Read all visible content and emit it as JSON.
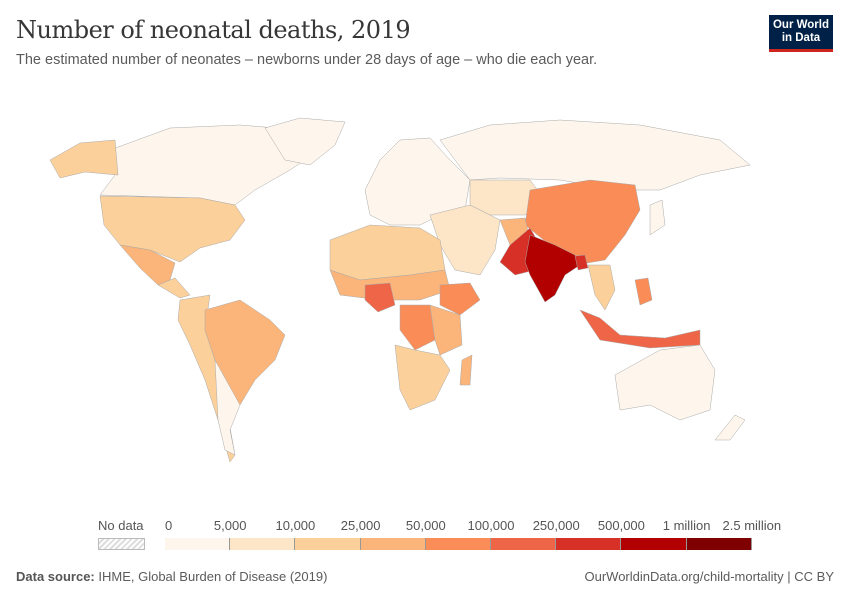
{
  "header": {
    "title": "Number of neonatal deaths, 2019",
    "subtitle": "The estimated number of neonates – newborns under 28 days of age – who die each year.",
    "logo": "Our World in Data"
  },
  "legend": {
    "no_data_label": "No data",
    "ticks": [
      "0",
      "5,000",
      "10,000",
      "25,000",
      "50,000",
      "100,000",
      "250,000",
      "500,000",
      "1 million",
      "2.5 million"
    ],
    "colors": [
      "#fef6ec",
      "#fde5c7",
      "#fcd09a",
      "#fbb479",
      "#fa8c57",
      "#ee6547",
      "#d73027",
      "#b20000",
      "#7f0000"
    ],
    "no_data_color": "#e0e0e0"
  },
  "footer": {
    "source_label": "Data source:",
    "source": "IHME, Global Burden of Disease (2019)",
    "url": "OurWorldinData.org/child-mortality | CC BY"
  }
}
